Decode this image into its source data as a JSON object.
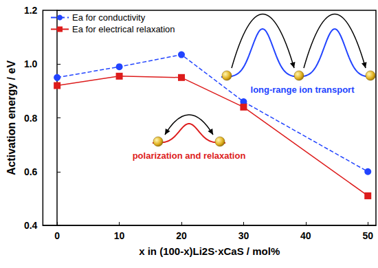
{
  "chart_data": {
    "type": "line",
    "x_label": "x in (100-x)Li2S·xCaS / mol%",
    "y_label": "Activation energy / eV",
    "x": [
      0,
      10,
      20,
      30,
      50
    ],
    "series": [
      {
        "name": "Ea for conductivity",
        "color": "#2244ff",
        "marker": "circle",
        "line_style": "dashed",
        "values": [
          0.95,
          0.99,
          1.035,
          0.86,
          0.6
        ]
      },
      {
        "name": "Ea for electrical relaxation",
        "color": "#dd1c1c",
        "marker": "square",
        "line_style": "solid",
        "values": [
          0.92,
          0.955,
          0.95,
          0.84,
          0.51
        ]
      }
    ],
    "xlim": [
      -2.3,
      51.3
    ],
    "xticks": [
      0,
      10,
      20,
      30,
      40,
      50
    ],
    "ylim": [
      0.4,
      1.2
    ],
    "yticks": [
      0.4,
      0.6,
      0.8,
      {
        "value": 1,
        "label": "1.0"
      },
      1.2
    ],
    "legend": "upper left",
    "grid": false,
    "annotations": [
      {
        "text": "long-range ion transport",
        "color": "#2244ff"
      },
      {
        "text": "polarization and relaxation",
        "color": "#dd1c1c"
      }
    ]
  }
}
